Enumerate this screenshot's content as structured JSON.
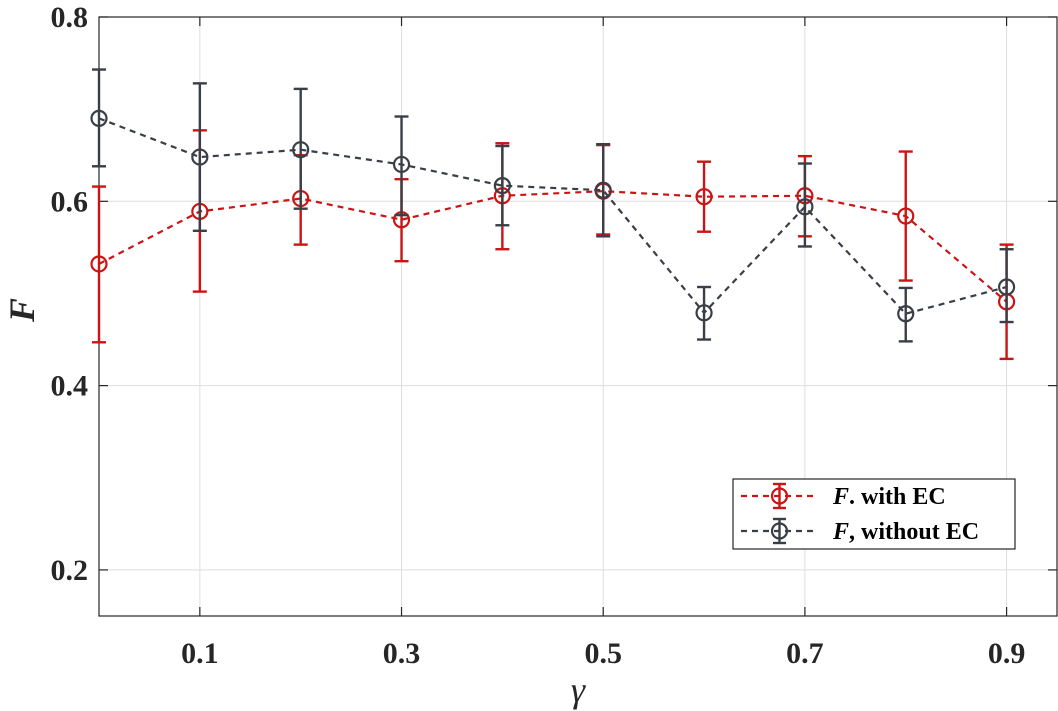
{
  "chart_data": {
    "type": "line",
    "title": "",
    "xlabel": "γ",
    "ylabel": "F",
    "xlim": [
      0,
      0.95
    ],
    "ylim": [
      0.15,
      0.8
    ],
    "grid": true,
    "x_ticks": [
      0.1,
      0.3,
      0.5,
      0.7,
      0.9
    ],
    "x_tick_labels": [
      "0.1",
      "0.3",
      "0.5",
      "0.7",
      "0.9"
    ],
    "y_ticks": [
      0.2,
      0.4,
      0.6,
      0.8
    ],
    "y_tick_labels": [
      "0.2",
      "0.4",
      "0.6",
      "0.8"
    ],
    "legend_position": "bottom-right",
    "series": [
      {
        "name": "F. with EC",
        "name_italic": "F",
        "name_rest": ". with EC",
        "color": "#cc1414",
        "x": [
          0.0,
          0.1,
          0.2,
          0.3,
          0.4,
          0.5,
          0.6,
          0.7,
          0.8,
          0.9
        ],
        "values": [
          0.532,
          0.589,
          0.603,
          0.58,
          0.606,
          0.611,
          0.605,
          0.606,
          0.584,
          0.491
        ],
        "err_low": [
          0.447,
          0.502,
          0.553,
          0.535,
          0.548,
          0.564,
          0.567,
          0.562,
          0.514,
          0.429
        ],
        "err_high": [
          0.616,
          0.677,
          0.65,
          0.624,
          0.663,
          0.661,
          0.643,
          0.649,
          0.654,
          0.553
        ]
      },
      {
        "name": "F, without EC",
        "name_italic": "F",
        "name_rest": ", without EC",
        "color": "#3a3f47",
        "x": [
          0.0,
          0.1,
          0.2,
          0.3,
          0.4,
          0.5,
          0.6,
          0.7,
          0.8,
          0.9
        ],
        "values": [
          0.69,
          0.648,
          0.656,
          0.64,
          0.617,
          0.612,
          0.479,
          0.594,
          0.478,
          0.507
        ],
        "err_low": [
          0.638,
          0.568,
          0.592,
          0.585,
          0.574,
          0.562,
          0.45,
          0.551,
          0.448,
          0.469
        ],
        "err_high": [
          0.743,
          0.728,
          0.722,
          0.692,
          0.66,
          0.662,
          0.507,
          0.641,
          0.506,
          0.548
        ]
      }
    ]
  }
}
